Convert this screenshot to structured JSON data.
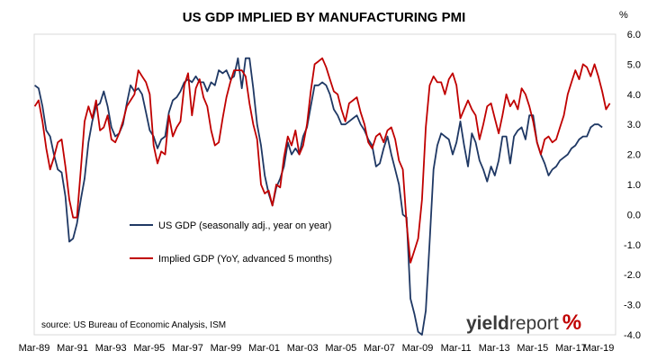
{
  "chart_data": {
    "type": "line",
    "title": "US GDP IMPLIED BY MANUFACTURING PMI",
    "y_unit": "%",
    "ylim": [
      -4.0,
      6.0
    ],
    "y_ticks": [
      6.0,
      5.0,
      4.0,
      3.0,
      2.0,
      1.0,
      0.0,
      -1.0,
      -2.0,
      -3.0,
      -4.0
    ],
    "y_tick_labels": [
      "6.0",
      "5.0",
      "4.0",
      "3.0",
      "2.0",
      "1.0",
      "0.0",
      "-1.0",
      "-2.0",
      "-3.0",
      "-4.0"
    ],
    "xlim": [
      1989.17,
      2019.5
    ],
    "x_ticks": [
      1989.17,
      1991.17,
      1993.17,
      1995.17,
      1997.17,
      1999.17,
      2001.17,
      2003.17,
      2005.17,
      2007.17,
      2009.17,
      2011.17,
      2013.17,
      2015.17,
      2017.17,
      2019.17
    ],
    "x_tick_labels": [
      "Mar-89",
      "Mar-91",
      "Mar-93",
      "Mar-95",
      "Mar-97",
      "Mar-99",
      "Mar-01",
      "Mar-03",
      "Mar-05",
      "Mar-07",
      "Mar-09",
      "Mar-11",
      "Mar-13",
      "Mar-15",
      "Mar-17",
      "Mar-19"
    ],
    "grid": false,
    "legend_position": "center-left",
    "series": [
      {
        "name": "US GDP (seasonally adj., year on year)",
        "color": "#1f3864",
        "points": [
          [
            1989.2,
            4.3
          ],
          [
            1989.4,
            4.2
          ],
          [
            1989.6,
            3.6
          ],
          [
            1989.8,
            2.8
          ],
          [
            1990.0,
            2.6
          ],
          [
            1990.2,
            2.0
          ],
          [
            1990.4,
            1.5
          ],
          [
            1990.6,
            1.4
          ],
          [
            1990.8,
            0.6
          ],
          [
            1991.0,
            -0.9
          ],
          [
            1991.2,
            -0.8
          ],
          [
            1991.4,
            -0.3
          ],
          [
            1991.6,
            0.5
          ],
          [
            1991.8,
            1.2
          ],
          [
            1992.0,
            2.4
          ],
          [
            1992.2,
            3.1
          ],
          [
            1992.4,
            3.6
          ],
          [
            1992.6,
            3.7
          ],
          [
            1992.8,
            4.1
          ],
          [
            1993.0,
            3.6
          ],
          [
            1993.2,
            2.9
          ],
          [
            1993.4,
            2.6
          ],
          [
            1993.6,
            2.7
          ],
          [
            1993.8,
            3.0
          ],
          [
            1994.0,
            3.7
          ],
          [
            1994.2,
            4.3
          ],
          [
            1994.4,
            4.1
          ],
          [
            1994.6,
            4.2
          ],
          [
            1994.8,
            4.0
          ],
          [
            1995.0,
            3.4
          ],
          [
            1995.2,
            2.8
          ],
          [
            1995.4,
            2.6
          ],
          [
            1995.6,
            2.2
          ],
          [
            1995.8,
            2.5
          ],
          [
            1996.0,
            2.6
          ],
          [
            1996.2,
            3.4
          ],
          [
            1996.4,
            3.8
          ],
          [
            1996.6,
            3.9
          ],
          [
            1996.8,
            4.1
          ],
          [
            1997.0,
            4.4
          ],
          [
            1997.2,
            4.5
          ],
          [
            1997.4,
            4.4
          ],
          [
            1997.6,
            4.6
          ],
          [
            1997.8,
            4.4
          ],
          [
            1998.0,
            4.4
          ],
          [
            1998.2,
            4.1
          ],
          [
            1998.4,
            4.4
          ],
          [
            1998.6,
            4.3
          ],
          [
            1998.8,
            4.8
          ],
          [
            1999.0,
            4.7
          ],
          [
            1999.2,
            4.8
          ],
          [
            1999.4,
            4.5
          ],
          [
            1999.6,
            4.6
          ],
          [
            1999.8,
            5.2
          ],
          [
            2000.0,
            4.2
          ],
          [
            2000.2,
            5.2
          ],
          [
            2000.4,
            5.2
          ],
          [
            2000.6,
            4.2
          ],
          [
            2000.8,
            3.0
          ],
          [
            2001.0,
            2.3
          ],
          [
            2001.2,
            1.3
          ],
          [
            2001.4,
            0.7
          ],
          [
            2001.6,
            0.3
          ],
          [
            2001.8,
            0.9
          ],
          [
            2002.0,
            1.2
          ],
          [
            2002.2,
            1.6
          ],
          [
            2002.4,
            2.4
          ],
          [
            2002.6,
            2.0
          ],
          [
            2002.8,
            2.2
          ],
          [
            2003.0,
            2.0
          ],
          [
            2003.2,
            2.6
          ],
          [
            2003.4,
            2.9
          ],
          [
            2003.6,
            3.6
          ],
          [
            2003.8,
            4.3
          ],
          [
            2004.0,
            4.3
          ],
          [
            2004.2,
            4.4
          ],
          [
            2004.4,
            4.3
          ],
          [
            2004.6,
            4.0
          ],
          [
            2004.8,
            3.5
          ],
          [
            2005.0,
            3.3
          ],
          [
            2005.2,
            3.0
          ],
          [
            2005.4,
            3.0
          ],
          [
            2005.6,
            3.1
          ],
          [
            2005.8,
            3.2
          ],
          [
            2006.0,
            3.3
          ],
          [
            2006.2,
            3.0
          ],
          [
            2006.4,
            2.8
          ],
          [
            2006.6,
            2.5
          ],
          [
            2006.8,
            2.3
          ],
          [
            2007.0,
            1.6
          ],
          [
            2007.2,
            1.7
          ],
          [
            2007.4,
            2.2
          ],
          [
            2007.6,
            2.6
          ],
          [
            2007.8,
            2.0
          ],
          [
            2008.0,
            1.5
          ],
          [
            2008.2,
            1.0
          ],
          [
            2008.4,
            0.0
          ],
          [
            2008.6,
            -0.1
          ],
          [
            2008.8,
            -2.8
          ],
          [
            2009.0,
            -3.3
          ],
          [
            2009.2,
            -3.9
          ],
          [
            2009.4,
            -4.0
          ],
          [
            2009.6,
            -3.2
          ],
          [
            2009.8,
            -0.9
          ],
          [
            2010.0,
            1.5
          ],
          [
            2010.2,
            2.3
          ],
          [
            2010.4,
            2.7
          ],
          [
            2010.6,
            2.6
          ],
          [
            2010.8,
            2.5
          ],
          [
            2011.0,
            2.0
          ],
          [
            2011.2,
            2.4
          ],
          [
            2011.4,
            3.1
          ],
          [
            2011.6,
            2.3
          ],
          [
            2011.8,
            1.6
          ],
          [
            2012.0,
            2.7
          ],
          [
            2012.2,
            2.4
          ],
          [
            2012.4,
            1.8
          ],
          [
            2012.6,
            1.5
          ],
          [
            2012.8,
            1.1
          ],
          [
            2013.0,
            1.6
          ],
          [
            2013.2,
            1.3
          ],
          [
            2013.4,
            1.8
          ],
          [
            2013.6,
            2.6
          ],
          [
            2013.8,
            2.6
          ],
          [
            2014.0,
            1.7
          ],
          [
            2014.2,
            2.6
          ],
          [
            2014.4,
            2.8
          ],
          [
            2014.6,
            2.9
          ],
          [
            2014.8,
            2.5
          ],
          [
            2015.0,
            3.3
          ],
          [
            2015.2,
            3.3
          ],
          [
            2015.4,
            2.4
          ],
          [
            2015.6,
            2.0
          ],
          [
            2015.8,
            1.7
          ],
          [
            2016.0,
            1.3
          ],
          [
            2016.2,
            1.5
          ],
          [
            2016.4,
            1.6
          ],
          [
            2016.6,
            1.8
          ],
          [
            2016.8,
            1.9
          ],
          [
            2017.0,
            2.0
          ],
          [
            2017.2,
            2.2
          ],
          [
            2017.4,
            2.3
          ],
          [
            2017.6,
            2.5
          ],
          [
            2017.8,
            2.6
          ],
          [
            2018.0,
            2.6
          ],
          [
            2018.2,
            2.9
          ],
          [
            2018.4,
            3.0
          ],
          [
            2018.6,
            3.0
          ],
          [
            2018.8,
            2.9
          ]
        ]
      },
      {
        "name": "Implied GDP (YoY, advanced 5 months)",
        "color": "#c00000",
        "points": [
          [
            1989.2,
            3.6
          ],
          [
            1989.4,
            3.8
          ],
          [
            1989.6,
            3.1
          ],
          [
            1989.8,
            2.2
          ],
          [
            1990.0,
            1.5
          ],
          [
            1990.2,
            1.9
          ],
          [
            1990.4,
            2.4
          ],
          [
            1990.6,
            2.5
          ],
          [
            1990.8,
            1.6
          ],
          [
            1991.0,
            0.5
          ],
          [
            1991.2,
            -0.1
          ],
          [
            1991.4,
            -0.1
          ],
          [
            1991.6,
            1.5
          ],
          [
            1991.8,
            3.1
          ],
          [
            1992.0,
            3.6
          ],
          [
            1992.2,
            3.2
          ],
          [
            1992.4,
            3.8
          ],
          [
            1992.6,
            2.8
          ],
          [
            1992.8,
            2.9
          ],
          [
            1993.0,
            3.3
          ],
          [
            1993.2,
            2.5
          ],
          [
            1993.4,
            2.4
          ],
          [
            1993.6,
            2.7
          ],
          [
            1993.8,
            3.1
          ],
          [
            1994.0,
            3.6
          ],
          [
            1994.2,
            3.8
          ],
          [
            1994.4,
            4.0
          ],
          [
            1994.6,
            4.8
          ],
          [
            1994.8,
            4.6
          ],
          [
            1995.0,
            4.4
          ],
          [
            1995.2,
            4.0
          ],
          [
            1995.4,
            2.3
          ],
          [
            1995.6,
            1.7
          ],
          [
            1995.8,
            2.1
          ],
          [
            1996.0,
            2.0
          ],
          [
            1996.2,
            3.3
          ],
          [
            1996.4,
            2.6
          ],
          [
            1996.6,
            2.9
          ],
          [
            1996.8,
            3.1
          ],
          [
            1997.0,
            4.3
          ],
          [
            1997.2,
            4.7
          ],
          [
            1997.4,
            3.3
          ],
          [
            1997.6,
            4.2
          ],
          [
            1997.8,
            4.5
          ],
          [
            1998.0,
            3.9
          ],
          [
            1998.2,
            3.6
          ],
          [
            1998.4,
            2.8
          ],
          [
            1998.6,
            2.3
          ],
          [
            1998.8,
            2.4
          ],
          [
            1999.0,
            3.2
          ],
          [
            1999.2,
            3.9
          ],
          [
            1999.4,
            4.4
          ],
          [
            1999.6,
            4.8
          ],
          [
            1999.8,
            4.8
          ],
          [
            2000.0,
            4.8
          ],
          [
            2000.2,
            4.6
          ],
          [
            2000.4,
            3.7
          ],
          [
            2000.6,
            3.0
          ],
          [
            2000.8,
            2.5
          ],
          [
            2001.0,
            1.0
          ],
          [
            2001.2,
            0.7
          ],
          [
            2001.4,
            0.8
          ],
          [
            2001.6,
            0.3
          ],
          [
            2001.8,
            1.0
          ],
          [
            2002.0,
            0.9
          ],
          [
            2002.2,
            1.9
          ],
          [
            2002.4,
            2.6
          ],
          [
            2002.6,
            2.3
          ],
          [
            2002.8,
            2.8
          ],
          [
            2003.0,
            2.0
          ],
          [
            2003.2,
            2.3
          ],
          [
            2003.4,
            3.0
          ],
          [
            2003.6,
            4.1
          ],
          [
            2003.8,
            5.0
          ],
          [
            2004.0,
            5.1
          ],
          [
            2004.2,
            5.2
          ],
          [
            2004.4,
            4.9
          ],
          [
            2004.6,
            4.5
          ],
          [
            2004.8,
            4.1
          ],
          [
            2005.0,
            4.0
          ],
          [
            2005.2,
            3.5
          ],
          [
            2005.4,
            3.1
          ],
          [
            2005.6,
            3.7
          ],
          [
            2005.8,
            3.8
          ],
          [
            2006.0,
            3.9
          ],
          [
            2006.2,
            3.4
          ],
          [
            2006.4,
            3.0
          ],
          [
            2006.6,
            2.4
          ],
          [
            2006.8,
            2.2
          ],
          [
            2007.0,
            2.6
          ],
          [
            2007.2,
            2.7
          ],
          [
            2007.4,
            2.4
          ],
          [
            2007.6,
            2.8
          ],
          [
            2007.8,
            2.9
          ],
          [
            2008.0,
            2.5
          ],
          [
            2008.2,
            1.8
          ],
          [
            2008.4,
            1.5
          ],
          [
            2008.6,
            -0.3
          ],
          [
            2008.8,
            -1.6
          ],
          [
            2009.0,
            -1.2
          ],
          [
            2009.2,
            -0.8
          ],
          [
            2009.4,
            0.5
          ],
          [
            2009.6,
            2.9
          ],
          [
            2009.8,
            4.3
          ],
          [
            2010.0,
            4.6
          ],
          [
            2010.2,
            4.4
          ],
          [
            2010.4,
            4.4
          ],
          [
            2010.6,
            4.0
          ],
          [
            2010.8,
            4.5
          ],
          [
            2011.0,
            4.7
          ],
          [
            2011.2,
            4.3
          ],
          [
            2011.4,
            3.2
          ],
          [
            2011.6,
            3.5
          ],
          [
            2011.8,
            3.8
          ],
          [
            2012.0,
            3.5
          ],
          [
            2012.2,
            3.3
          ],
          [
            2012.4,
            2.5
          ],
          [
            2012.6,
            3.0
          ],
          [
            2012.8,
            3.6
          ],
          [
            2013.0,
            3.7
          ],
          [
            2013.2,
            3.2
          ],
          [
            2013.4,
            2.7
          ],
          [
            2013.6,
            3.3
          ],
          [
            2013.8,
            4.0
          ],
          [
            2014.0,
            3.6
          ],
          [
            2014.2,
            3.8
          ],
          [
            2014.4,
            3.5
          ],
          [
            2014.6,
            4.2
          ],
          [
            2014.8,
            4.0
          ],
          [
            2015.0,
            3.6
          ],
          [
            2015.2,
            3.1
          ],
          [
            2015.4,
            2.4
          ],
          [
            2015.6,
            2.0
          ],
          [
            2015.8,
            2.5
          ],
          [
            2016.0,
            2.6
          ],
          [
            2016.2,
            2.4
          ],
          [
            2016.4,
            2.5
          ],
          [
            2016.6,
            2.9
          ],
          [
            2016.8,
            3.3
          ],
          [
            2017.0,
            4.0
          ],
          [
            2017.2,
            4.4
          ],
          [
            2017.4,
            4.8
          ],
          [
            2017.6,
            4.5
          ],
          [
            2017.8,
            5.0
          ],
          [
            2018.0,
            4.9
          ],
          [
            2018.2,
            4.6
          ],
          [
            2018.4,
            5.0
          ],
          [
            2018.6,
            4.6
          ],
          [
            2018.8,
            4.1
          ],
          [
            2019.0,
            3.5
          ],
          [
            2019.2,
            3.7
          ]
        ]
      }
    ]
  },
  "source_note": "source: US Bureau of Economic Analysis, ISM",
  "logo": {
    "part1": "yield",
    "part2": "report",
    "pct": "%"
  }
}
